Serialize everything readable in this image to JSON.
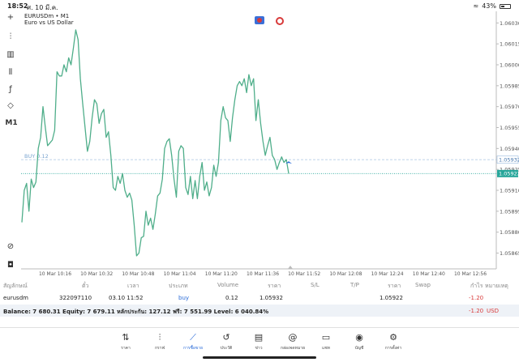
{
  "status_bar": {
    "time": "18:52",
    "date": "ศ. 10 มี.ค.",
    "battery": "43%",
    "battery_level": 0.43
  },
  "chart": {
    "symbol": "EURUSDm • M1",
    "description": "Euro vs US Dollar",
    "buy_label": "BUY 0.12",
    "colors": {
      "line": "#4fae8a",
      "bid_tag": "#26a69a",
      "buy_line": "#a8c4e0"
    }
  },
  "chart_data": {
    "type": "line",
    "series": [
      {
        "values": [
          1.05887,
          1.0591,
          1.05915,
          1.05895,
          1.05918,
          1.05912,
          1.05916,
          1.0594,
          1.05948,
          1.0597,
          1.05955,
          1.05942,
          1.05944,
          1.05946,
          1.05953,
          1.05995,
          1.05992,
          1.05992,
          1.06,
          1.05995,
          1.06005,
          1.06,
          1.06012,
          1.06025,
          1.06018,
          1.0599,
          1.05972,
          1.05955,
          1.05938,
          1.05945,
          1.05962,
          1.05975,
          1.05972,
          1.05958,
          1.05965,
          1.05968,
          1.05948,
          1.05952,
          1.05935,
          1.05912,
          1.0591,
          1.0592,
          1.05915,
          1.05922,
          1.0591,
          1.05905,
          1.05908,
          1.05903,
          1.05885,
          1.05863,
          1.05865,
          1.05876,
          1.05877,
          1.05895,
          1.05885,
          1.0589,
          1.05882,
          1.05893,
          1.05906,
          1.05908,
          1.05918,
          1.0594,
          1.05945,
          1.05947,
          1.05935,
          1.05918,
          1.05905,
          1.05938,
          1.05942,
          1.0594,
          1.05912,
          1.05907,
          1.0592,
          1.05904,
          1.05917,
          1.05904,
          1.0592,
          1.0593,
          1.0591,
          1.05916,
          1.05906,
          1.05912,
          1.05928,
          1.0592,
          1.0593,
          1.0596,
          1.0597,
          1.05962,
          1.0596,
          1.05945,
          1.05962,
          1.05975,
          1.05985,
          1.05988,
          1.05985,
          1.0599,
          1.0598,
          1.05993,
          1.05985,
          1.0599,
          1.0596,
          1.05975,
          1.05958,
          1.05945,
          1.05935,
          1.05942,
          1.05948,
          1.05935,
          1.05932,
          1.05925,
          1.0593,
          1.05934,
          1.0593,
          1.05932,
          1.05922
        ]
      }
    ],
    "ylim": [
      1.05856,
      1.06036
    ],
    "y_ticks": [
      "1.06030",
      "1.06015",
      "1.06000",
      "1.05985",
      "1.05970",
      "1.05955",
      "1.05940",
      "1.05925",
      "1.05910",
      "1.05895",
      "1.05880",
      "1.05865"
    ],
    "y_tick_values": [
      1.0603,
      1.06015,
      1.06,
      1.05985,
      1.0597,
      1.05955,
      1.0594,
      1.05925,
      1.0591,
      1.05895,
      1.0588,
      1.05865
    ],
    "x_ticks": [
      "10 Mar 10:16",
      "10 Mar 10:32",
      "10 Mar 10:48",
      "10 Mar 11:04",
      "10 Mar 11:20",
      "10 Mar 11:36",
      "10 Mar 11:52",
      "10 Mar 12:08",
      "10 Mar 12:24",
      "10 Mar 12:40",
      "10 Mar 12:56"
    ],
    "buy_price": "1.05932",
    "buy_price_value": 1.05932,
    "bid_price": "1.05922",
    "bid_price_value": 1.05922,
    "grid": false
  },
  "orders": {
    "headers": [
      "สัญลักษณ์",
      "ตั๋ว",
      "เวลา",
      "ประเภท",
      "Volume",
      "ราคา",
      "S/L",
      "T/P",
      "ราคา",
      "Swap",
      "กำไร",
      "หมายเหตุ"
    ],
    "row": {
      "symbol": "eurusdm",
      "ticket": "322097110",
      "time": "03.10 11:52",
      "type": "buy",
      "volume": "0.12",
      "price": "1.05932",
      "current_price": "1.05922",
      "profit": "-1.20"
    },
    "balance_text": "Balance: 7 680.31 Equity: 7 679.11 หลักประกัน: 127.12 ฟรี: 7 551.99 Level: 6 040.84%",
    "total_profit": "-1.20",
    "currency": "USD"
  },
  "nav": [
    {
      "label": "ราคา",
      "icon": "quotes-icon",
      "glyph": "⇅"
    },
    {
      "label": "กราฟ",
      "icon": "chart-icon",
      "glyph": "⫶"
    },
    {
      "label": "การซื้อขาย",
      "icon": "trade-icon",
      "glyph": "⟋"
    },
    {
      "label": "ประวัติ",
      "icon": "history-icon",
      "glyph": "↺"
    },
    {
      "label": "ข่าว",
      "icon": "news-icon",
      "glyph": "▤"
    },
    {
      "label": "กล่องจดหมาย",
      "icon": "mailbox-icon",
      "glyph": "@"
    },
    {
      "label": "แชท",
      "icon": "chat-icon",
      "glyph": "▭"
    },
    {
      "label": "บัญชี",
      "icon": "account-icon",
      "glyph": "◉"
    },
    {
      "label": "การตั้งค่า",
      "icon": "settings-icon",
      "glyph": "⚙"
    }
  ],
  "left_tools": [
    {
      "icon": "crosshair-icon",
      "glyph": "+"
    },
    {
      "icon": "candles-icon",
      "glyph": "⫶"
    },
    {
      "icon": "bars-icon",
      "glyph": "▥"
    },
    {
      "icon": "indicators-icon",
      "glyph": "⫴"
    },
    {
      "icon": "function-icon",
      "glyph": "ƒ"
    },
    {
      "icon": "objects-icon",
      "glyph": "◇"
    },
    {
      "label": "M1"
    },
    {
      "icon": "zoom-icon",
      "glyph": "⊘"
    },
    {
      "icon": "terminal-icon",
      "glyph": "◘"
    }
  ]
}
